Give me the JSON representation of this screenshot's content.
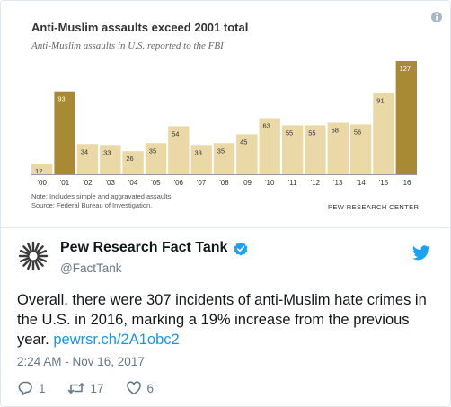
{
  "chart_data": {
    "type": "bar",
    "title": "Anti-Muslim assaults exceed 2001 total",
    "subtitle": "Anti-Muslim assaults in U.S. reported to the FBI",
    "categories": [
      "'00",
      "'01",
      "'02",
      "'03",
      "'04",
      "'05",
      "'06",
      "'07",
      "'08",
      "'09",
      "'10",
      "'11",
      "'12",
      "'13",
      "'14",
      "'15",
      "'16"
    ],
    "values": [
      12,
      93,
      34,
      33,
      26,
      35,
      54,
      33,
      35,
      45,
      63,
      55,
      55,
      58,
      56,
      91,
      127
    ],
    "ylim": [
      0,
      127
    ],
    "colors": {
      "default": "#ead9a6",
      "highlight": "#a88a35",
      "label_default": "#333333",
      "label_highlight": "#ffffff"
    },
    "highlighted_categories": [
      "'01",
      "'16"
    ],
    "note_line1": "Note: Includes simple and aggravated assaults.",
    "note_line2": "Source: Federal Bureau of Investigation.",
    "brand": "PEW RESEARCH CENTER"
  },
  "tweet": {
    "display_name": "Pew Research Fact Tank",
    "handle": "@FactTank",
    "text_before_link": "Overall, there were 307 incidents of anti-Muslim hate crimes in the U.S. in 2016, marking a 19% increase from the previous year. ",
    "link": "pewrsr.ch/2A1obc2",
    "timestamp": "2:24 AM - Nov 16, 2017",
    "replies": "1",
    "retweets": "17",
    "likes": "6",
    "colors": {
      "link": "#1b95e0",
      "verified": "#1da1f2",
      "bird": "#1da1f2",
      "muted": "#657786"
    }
  }
}
